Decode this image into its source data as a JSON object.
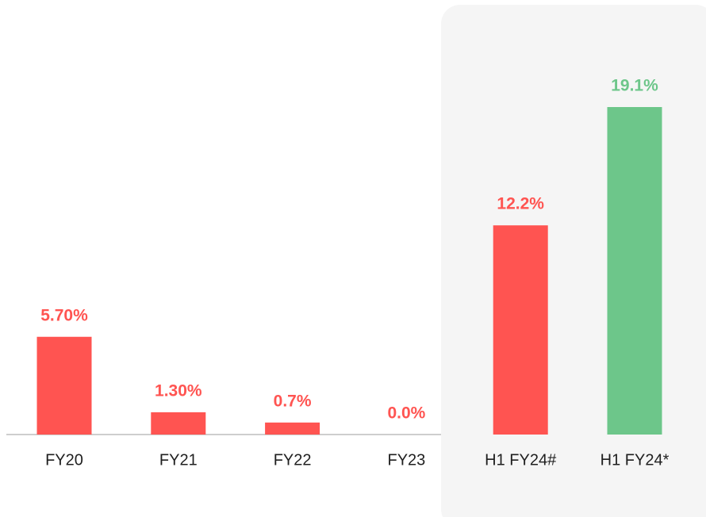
{
  "chart_data": {
    "type": "bar",
    "categories": [
      "FY20",
      "FY21",
      "FY22",
      "FY23",
      "H1 FY24#",
      "H1 FY24*"
    ],
    "values": [
      5.7,
      1.3,
      0.7,
      0.0,
      12.2,
      19.1
    ],
    "value_labels": [
      "5.70%",
      "1.30%",
      "0.7%",
      "0.0%",
      "12.2%",
      "19.1%"
    ],
    "colors": [
      "#ff5451",
      "#ff5451",
      "#ff5451",
      "#ff5451",
      "#ff5451",
      "#6dc68a"
    ]
  }
}
